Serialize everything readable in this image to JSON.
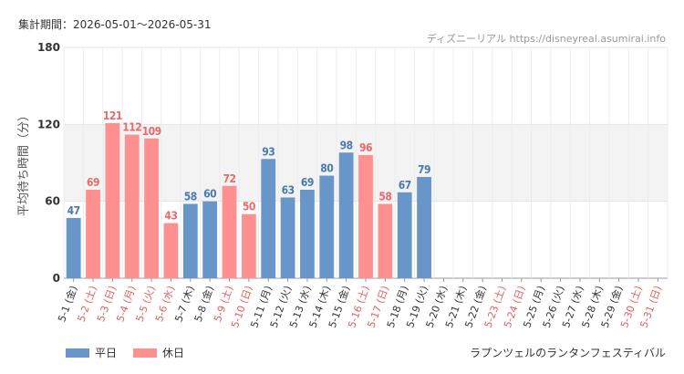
{
  "header": {
    "period": "集計期間：2026-05-01～2026-05-31",
    "site": "ディズニーリアル https://disneyreal.asumirai.info"
  },
  "legend": {
    "weekday_label": "平日",
    "holiday_label": "休日",
    "weekday_color": "#6896c8",
    "holiday_color": "#ff9090"
  },
  "attraction": "ラプンツェルのランタンフェスティバル",
  "chart_data": {
    "type": "bar",
    "ylabel": "平均待ち時間（分）",
    "ylim": [
      0,
      180
    ],
    "yticks": [
      0,
      60,
      120,
      180
    ],
    "grid": true,
    "legend_position": "bottom-left",
    "categories": [
      "5-1 (金)",
      "5-2 (土)",
      "5-3 (日)",
      "5-4 (月)",
      "5-5 (火)",
      "5-6 (水)",
      "5-7 (木)",
      "5-8 (金)",
      "5-9 (土)",
      "5-10 (日)",
      "5-11 (月)",
      "5-12 (火)",
      "5-13 (水)",
      "5-14 (木)",
      "5-15 (金)",
      "5-16 (土)",
      "5-17 (日)",
      "5-18 (月)",
      "5-19 (火)",
      "5-20 (水)",
      "5-21 (木)",
      "5-22 (金)",
      "5-23 (土)",
      "5-24 (日)",
      "5-25 (月)",
      "5-26 (火)",
      "5-27 (水)",
      "5-28 (木)",
      "5-29 (金)",
      "5-30 (土)",
      "5-31 (日)"
    ],
    "day_types": [
      "weekday",
      "holiday",
      "holiday",
      "holiday",
      "holiday",
      "holiday",
      "weekday",
      "weekday",
      "holiday",
      "holiday",
      "weekday",
      "weekday",
      "weekday",
      "weekday",
      "weekday",
      "holiday",
      "holiday",
      "weekday",
      "weekday",
      "weekday",
      "weekday",
      "weekday",
      "holiday",
      "holiday",
      "weekday",
      "weekday",
      "weekday",
      "weekday",
      "weekday",
      "holiday",
      "holiday"
    ],
    "values": [
      47,
      69,
      121,
      112,
      109,
      43,
      58,
      60,
      72,
      50,
      93,
      63,
      69,
      80,
      98,
      96,
      58,
      67,
      79,
      null,
      null,
      null,
      null,
      null,
      null,
      null,
      null,
      null,
      null,
      null,
      null
    ]
  }
}
